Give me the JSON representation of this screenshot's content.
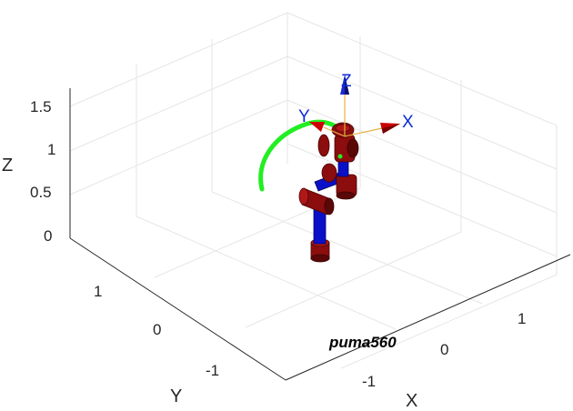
{
  "axes": {
    "x_label": "X",
    "y_label": "Y",
    "z_label": "Z",
    "x_ticks": [
      "-1",
      "0",
      "1"
    ],
    "y_ticks": [
      "-1",
      "0",
      "1"
    ],
    "z_ticks": [
      "0",
      "0.5",
      "1",
      "1.5"
    ]
  },
  "robot": {
    "name": "puma560",
    "link_color": "#0a0fc8",
    "joint_color": "#8b0d0d"
  },
  "tool_frame": {
    "x_label": "X",
    "y_label": "Y",
    "z_label": "Z",
    "label_color": "#0b2bd9",
    "arrow_color": "#cc0000"
  },
  "path": {
    "color": "#22ee22"
  },
  "grid": true
}
